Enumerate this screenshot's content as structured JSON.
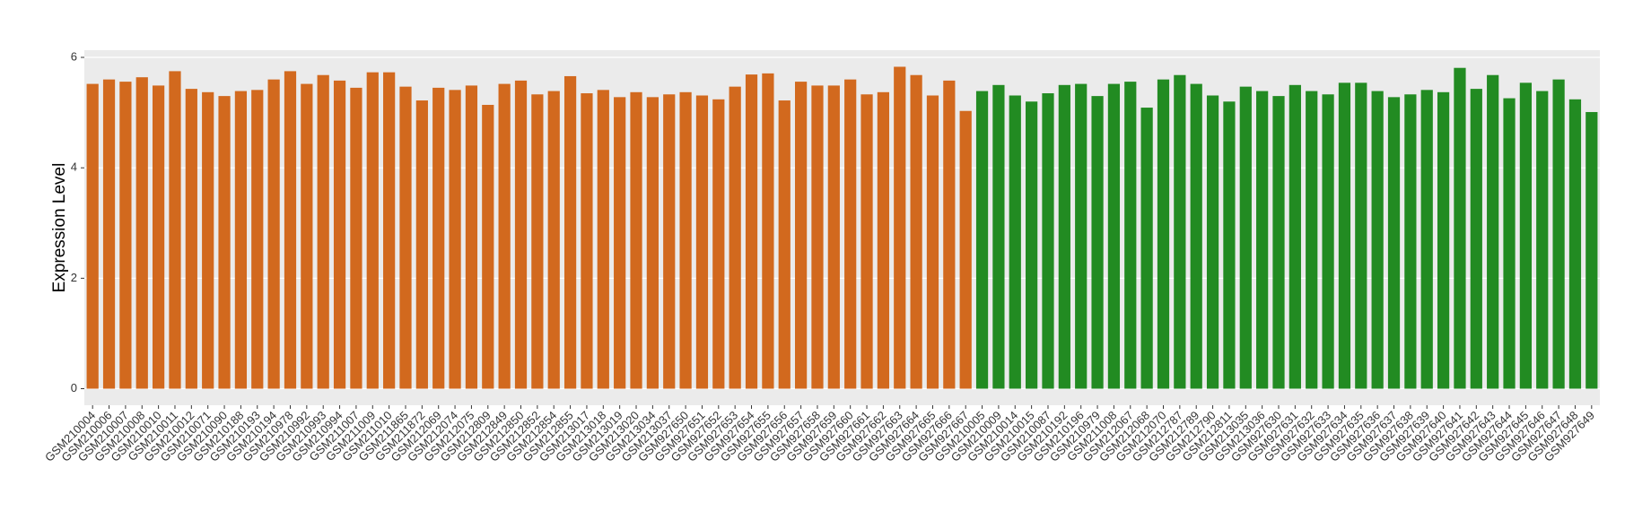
{
  "chart_data": {
    "type": "bar",
    "y_label": "Expression Level",
    "categories": [
      "GSM210004",
      "GSM210006",
      "GSM210007",
      "GSM210008",
      "GSM210010",
      "GSM210011",
      "GSM210012",
      "GSM210071",
      "GSM210090",
      "GSM210188",
      "GSM210193",
      "GSM210194",
      "GSM210978",
      "GSM210992",
      "GSM210993",
      "GSM210994",
      "GSM211007",
      "GSM211009",
      "GSM211010",
      "GSM211865",
      "GSM211872",
      "GSM212069",
      "GSM212074",
      "GSM212075",
      "GSM212809",
      "GSM212849",
      "GSM212850",
      "GSM212852",
      "GSM212854",
      "GSM212855",
      "GSM213017",
      "GSM213018",
      "GSM213019",
      "GSM213020",
      "GSM213034",
      "GSM213037",
      "GSM927650",
      "GSM927651",
      "GSM927652",
      "GSM927653",
      "GSM927654",
      "GSM927655",
      "GSM927656",
      "GSM927657",
      "GSM927658",
      "GSM927659",
      "GSM927660",
      "GSM927661",
      "GSM927662",
      "GSM927663",
      "GSM927664",
      "GSM927665",
      "GSM927666",
      "GSM927667",
      "GSM210005",
      "GSM210009",
      "GSM210014",
      "GSM210015",
      "GSM210087",
      "GSM210192",
      "GSM210196",
      "GSM210979",
      "GSM211008",
      "GSM212067",
      "GSM212068",
      "GSM212070",
      "GSM212787",
      "GSM212789",
      "GSM212790",
      "GSM212811",
      "GSM213035",
      "GSM213036",
      "GSM927630",
      "GSM927631",
      "GSM927632",
      "GSM927633",
      "GSM927634",
      "GSM927635",
      "GSM927636",
      "GSM927637",
      "GSM927638",
      "GSM927639",
      "GSM927640",
      "GSM927641",
      "GSM927642",
      "GSM927643",
      "GSM927644",
      "GSM927645",
      "GSM927646",
      "GSM927647",
      "GSM927648",
      "GSM927649"
    ],
    "values": [
      5.52,
      5.6,
      5.56,
      5.64,
      5.49,
      5.75,
      5.43,
      5.37,
      5.3,
      5.39,
      5.41,
      5.6,
      5.75,
      5.52,
      5.68,
      5.58,
      5.45,
      5.73,
      5.73,
      5.47,
      5.22,
      5.45,
      5.41,
      5.49,
      5.14,
      5.52,
      5.58,
      5.33,
      5.39,
      5.66,
      5.35,
      5.41,
      5.28,
      5.37,
      5.28,
      5.33,
      5.37,
      5.31,
      5.24,
      5.47,
      5.69,
      5.71,
      5.22,
      5.56,
      5.49,
      5.49,
      5.6,
      5.33,
      5.37,
      5.83,
      5.68,
      5.31,
      5.58,
      5.03,
      5.39,
      5.5,
      5.31,
      5.2,
      5.35,
      5.5,
      5.52,
      5.3,
      5.52,
      5.56,
      5.09,
      5.6,
      5.68,
      5.52,
      5.31,
      5.2,
      5.47,
      5.39,
      5.3,
      5.5,
      5.39,
      5.33,
      5.54,
      5.54,
      5.39,
      5.28,
      5.33,
      5.41,
      5.37,
      5.81,
      5.43,
      5.68,
      5.26,
      5.54,
      5.39,
      5.6,
      5.24,
      5.01
    ],
    "colors": [
      "#d2691e",
      "#d2691e",
      "#d2691e",
      "#d2691e",
      "#d2691e",
      "#d2691e",
      "#d2691e",
      "#d2691e",
      "#d2691e",
      "#d2691e",
      "#d2691e",
      "#d2691e",
      "#d2691e",
      "#d2691e",
      "#d2691e",
      "#d2691e",
      "#d2691e",
      "#d2691e",
      "#d2691e",
      "#d2691e",
      "#d2691e",
      "#d2691e",
      "#d2691e",
      "#d2691e",
      "#d2691e",
      "#d2691e",
      "#d2691e",
      "#d2691e",
      "#d2691e",
      "#d2691e",
      "#d2691e",
      "#d2691e",
      "#d2691e",
      "#d2691e",
      "#d2691e",
      "#d2691e",
      "#d2691e",
      "#d2691e",
      "#d2691e",
      "#d2691e",
      "#d2691e",
      "#d2691e",
      "#d2691e",
      "#d2691e",
      "#d2691e",
      "#d2691e",
      "#d2691e",
      "#d2691e",
      "#d2691e",
      "#d2691e",
      "#d2691e",
      "#d2691e",
      "#d2691e",
      "#d2691e",
      "#228b22",
      "#228b22",
      "#228b22",
      "#228b22",
      "#228b22",
      "#228b22",
      "#228b22",
      "#228b22",
      "#228b22",
      "#228b22",
      "#228b22",
      "#228b22",
      "#228b22",
      "#228b22",
      "#228b22",
      "#228b22",
      "#228b22",
      "#228b22",
      "#228b22",
      "#228b22",
      "#228b22",
      "#228b22",
      "#228b22",
      "#228b22",
      "#228b22",
      "#228b22",
      "#228b22",
      "#228b22",
      "#228b22",
      "#228b22",
      "#228b22",
      "#228b22",
      "#228b22",
      "#228b22",
      "#228b22",
      "#228b22",
      "#228b22",
      "#228b22"
    ],
    "ylim": [
      -0.3,
      6.13
    ],
    "yticks": [
      0,
      2,
      4,
      6
    ],
    "grid": true
  }
}
